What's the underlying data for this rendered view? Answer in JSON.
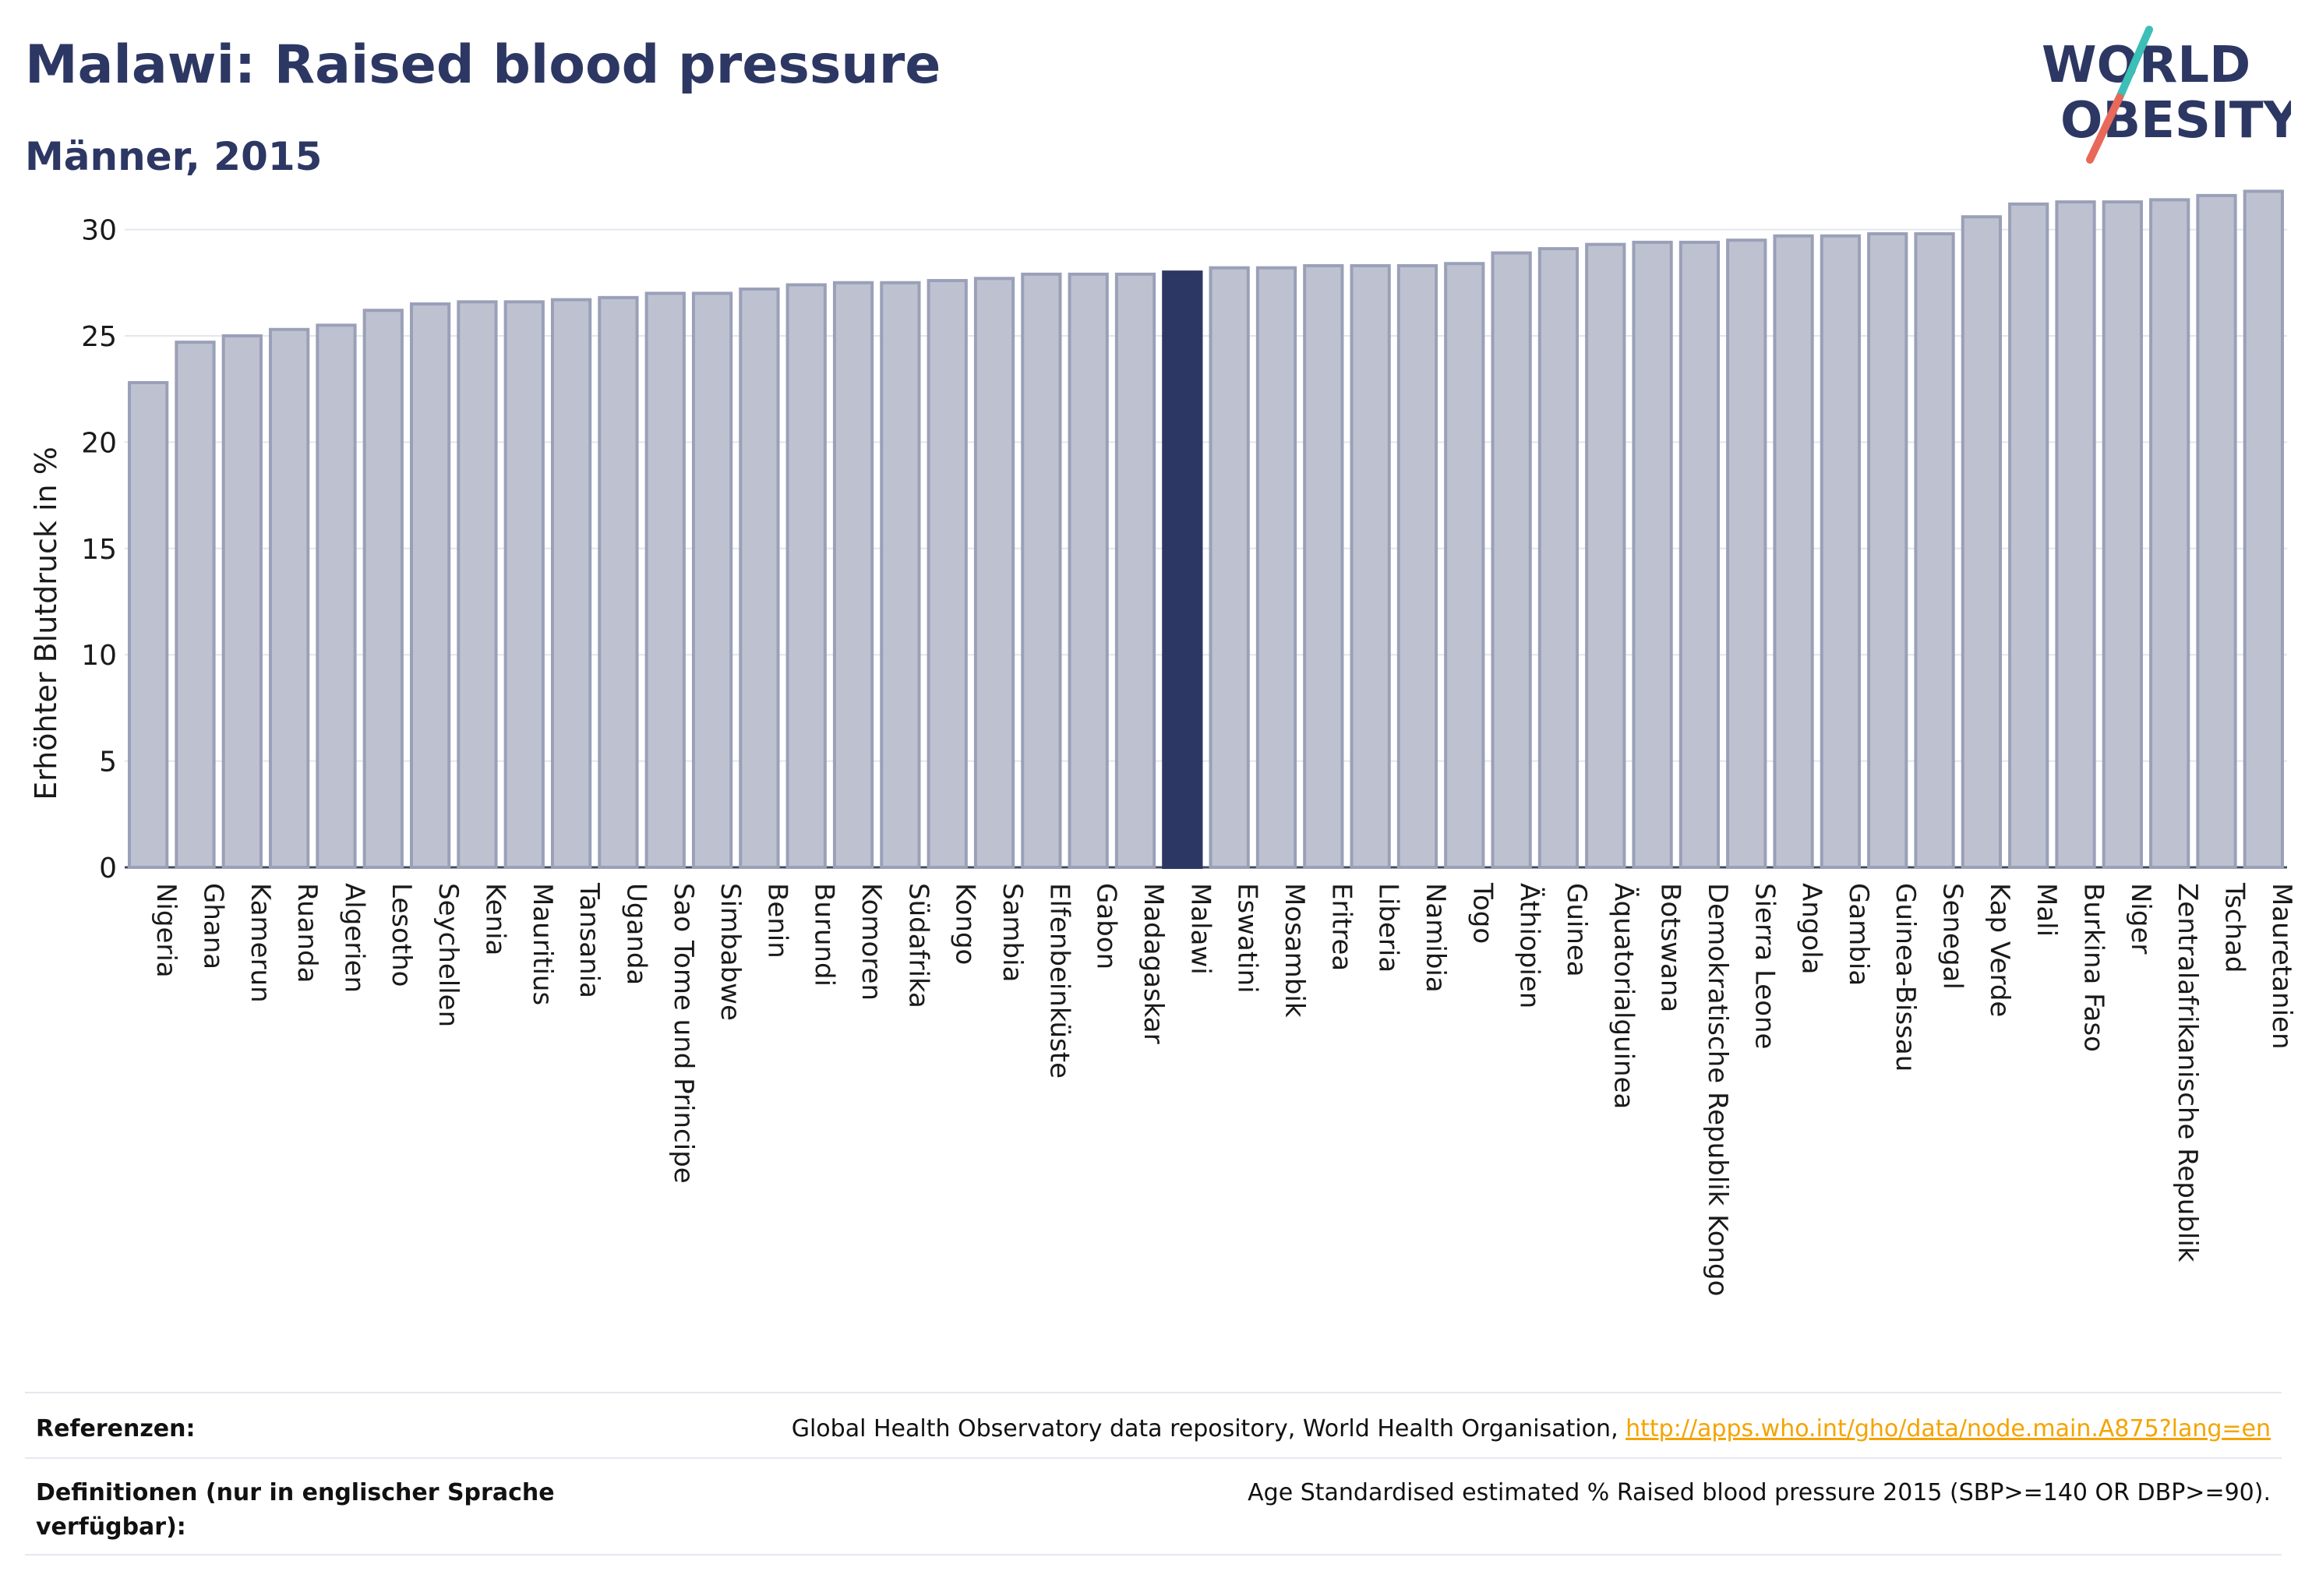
{
  "header": {
    "title": "Malawi: Raised blood pressure",
    "subtitle": "Männer, 2015"
  },
  "logo": {
    "line1": "WORLD",
    "line2": "OBESITY",
    "text_color": "#2d3763",
    "slash_color_top": "#3bbfb6",
    "slash_color_bottom": "#e8685a"
  },
  "chart_data": {
    "type": "bar",
    "ylabel": "Erhöhter Blutdruck in %",
    "ylim": [
      0,
      32
    ],
    "yticks": [
      0,
      5,
      10,
      15,
      20,
      25,
      30
    ],
    "grid": true,
    "highlight": "Malawi",
    "colors": {
      "bar": "#bec2d0",
      "bar_edge": "#9aa0b8",
      "highlight": "#2d3763",
      "grid": "#e4e6ee"
    },
    "categories": [
      "Nigeria",
      "Ghana",
      "Kamerun",
      "Ruanda",
      "Algerien",
      "Lesotho",
      "Seychellen",
      "Kenia",
      "Mauritius",
      "Tansania",
      "Uganda",
      "Sao Tome und Principe",
      "Simbabwe",
      "Benin",
      "Burundi",
      "Komoren",
      "Südafrika",
      "Kongo",
      "Sambia",
      "Elfenbeinküste",
      "Gabon",
      "Madagaskar",
      "Malawi",
      "Eswatini",
      "Mosambik",
      "Eritrea",
      "Liberia",
      "Namibia",
      "Togo",
      "Äthiopien",
      "Guinea",
      "Äquatorialguinea",
      "Botswana",
      "Demokratische Republik Kongo",
      "Sierra Leone",
      "Angola",
      "Gambia",
      "Guinea-Bissau",
      "Senegal",
      "Kap Verde",
      "Mali",
      "Burkina Faso",
      "Niger",
      "Zentralafrikanische Republik",
      "Tschad",
      "Mauretanien"
    ],
    "values": [
      22.8,
      24.7,
      25.0,
      25.3,
      25.5,
      26.2,
      26.5,
      26.6,
      26.6,
      26.7,
      26.8,
      27.0,
      27.0,
      27.2,
      27.4,
      27.5,
      27.5,
      27.6,
      27.7,
      27.9,
      27.9,
      27.9,
      28.0,
      28.2,
      28.2,
      28.3,
      28.3,
      28.3,
      28.4,
      28.9,
      29.1,
      29.3,
      29.4,
      29.4,
      29.5,
      29.7,
      29.7,
      29.8,
      29.8,
      30.6,
      31.2,
      31.3,
      31.3,
      31.4,
      31.6,
      31.8
    ]
  },
  "footer": {
    "references_label": "Referenzen:",
    "references_text": "Global Health Observatory data repository, World Health Organisation, ",
    "references_link": "http://apps.who.int/gho/data/node.main.A875?lang=en",
    "definitions_label": "Definitionen (nur in englischer Sprache verfügbar):",
    "definitions_text": "Age Standardised estimated % Raised blood pressure 2015 (SBP>=140 OR DBP>=90)."
  }
}
